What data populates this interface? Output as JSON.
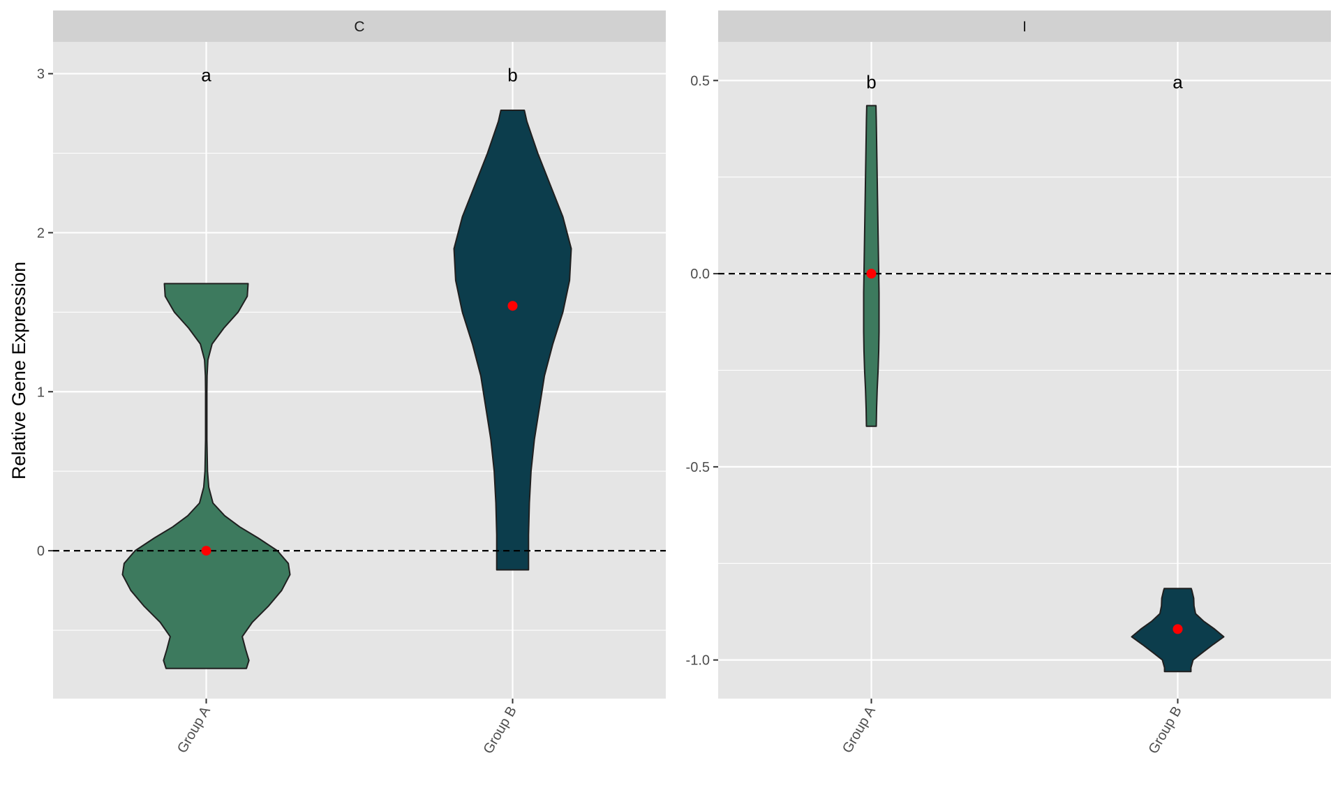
{
  "chart_data": {
    "type": "violin",
    "ylabel": "Relative Gene Expression",
    "colors": {
      "Group A": "#3d7a5e",
      "Group B": "#0c3d4c",
      "mean_point": "#ff0000",
      "panel_background": "#e5e5e5",
      "strip_background": "#d1d1d1",
      "reference_line": "#000000"
    },
    "reference_line_y": 0,
    "panels": [
      {
        "strip": "C",
        "ylim": [
          -0.93,
          3.2
        ],
        "yticks": [
          0,
          1,
          2,
          3
        ],
        "ytick_labels": [
          "0",
          "1",
          "2",
          "3"
        ],
        "categories": [
          "Group A",
          "Group B"
        ],
        "groups": [
          {
            "name": "Group A",
            "letter": "a",
            "mean": 0.0,
            "min": -0.74,
            "max": 1.68,
            "density": [
              [
                -0.74,
                0.48
              ],
              [
                -0.69,
                0.51
              ],
              [
                -0.62,
                0.47
              ],
              [
                -0.54,
                0.43
              ],
              [
                -0.45,
                0.55
              ],
              [
                -0.35,
                0.74
              ],
              [
                -0.25,
                0.9
              ],
              [
                -0.15,
                1.0
              ],
              [
                -0.08,
                0.98
              ],
              [
                0.0,
                0.85
              ],
              [
                0.08,
                0.62
              ],
              [
                0.15,
                0.4
              ],
              [
                0.22,
                0.22
              ],
              [
                0.3,
                0.08
              ],
              [
                0.4,
                0.03
              ],
              [
                0.5,
                0.015
              ],
              [
                0.7,
                0.008
              ],
              [
                1.0,
                0.008
              ],
              [
                1.1,
                0.01
              ],
              [
                1.2,
                0.02
              ],
              [
                1.3,
                0.07
              ],
              [
                1.4,
                0.21
              ],
              [
                1.5,
                0.38
              ],
              [
                1.6,
                0.49
              ],
              [
                1.68,
                0.5
              ]
            ]
          },
          {
            "name": "Group B",
            "letter": "b",
            "mean": 1.54,
            "min": -0.12,
            "max": 2.77,
            "density": [
              [
                -0.12,
                0.19
              ],
              [
                0.1,
                0.19
              ],
              [
                0.3,
                0.2
              ],
              [
                0.5,
                0.22
              ],
              [
                0.7,
                0.26
              ],
              [
                0.9,
                0.32
              ],
              [
                1.1,
                0.38
              ],
              [
                1.3,
                0.48
              ],
              [
                1.5,
                0.6
              ],
              [
                1.7,
                0.68
              ],
              [
                1.9,
                0.7
              ],
              [
                2.1,
                0.6
              ],
              [
                2.3,
                0.45
              ],
              [
                2.5,
                0.3
              ],
              [
                2.7,
                0.17
              ],
              [
                2.77,
                0.14
              ]
            ]
          }
        ]
      },
      {
        "strip": "I",
        "ylim": [
          -1.1,
          0.6
        ],
        "yticks": [
          -1.0,
          -0.5,
          0.0,
          0.5
        ],
        "ytick_labels": [
          "-1.0",
          "-0.5",
          "0.0",
          "0.5"
        ],
        "categories": [
          "Group A",
          "Group B"
        ],
        "groups": [
          {
            "name": "Group A",
            "letter": "b",
            "mean": 0.0,
            "min": -0.395,
            "max": 0.435,
            "density": [
              [
                -0.395,
                0.16
              ],
              [
                -0.35,
                0.17
              ],
              [
                -0.3,
                0.19
              ],
              [
                -0.25,
                0.22
              ],
              [
                -0.2,
                0.24
              ],
              [
                -0.15,
                0.25
              ],
              [
                -0.1,
                0.25
              ],
              [
                -0.05,
                0.25
              ],
              [
                0.0,
                0.24
              ],
              [
                0.1,
                0.22
              ],
              [
                0.2,
                0.2
              ],
              [
                0.3,
                0.18
              ],
              [
                0.4,
                0.16
              ],
              [
                0.435,
                0.15
              ]
            ]
          },
          {
            "name": "Group B",
            "letter": "a",
            "mean": -0.92,
            "min": -1.03,
            "max": -0.815,
            "density": [
              [
                -1.03,
                0.43
              ],
              [
                -1.02,
                0.43
              ],
              [
                -1.0,
                0.5
              ],
              [
                -0.98,
                0.82
              ],
              [
                -0.96,
                1.15
              ],
              [
                -0.94,
                1.5
              ],
              [
                -0.92,
                1.2
              ],
              [
                -0.9,
                0.85
              ],
              [
                -0.88,
                0.58
              ],
              [
                -0.86,
                0.53
              ],
              [
                -0.84,
                0.52
              ],
              [
                -0.82,
                0.46
              ],
              [
                -0.815,
                0.44
              ]
            ]
          }
        ]
      }
    ]
  }
}
